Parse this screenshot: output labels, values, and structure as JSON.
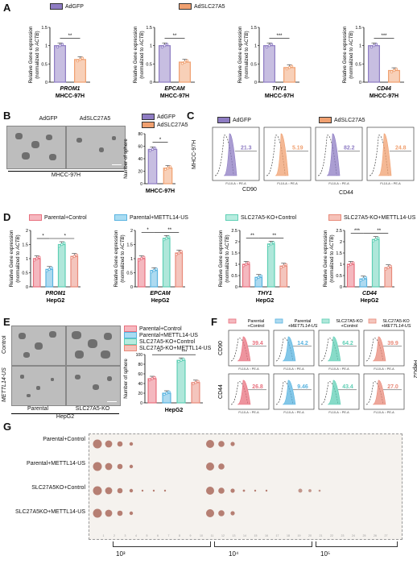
{
  "panels": {
    "A": "A",
    "B": "B",
    "C": "C",
    "D": "D",
    "E": "E",
    "F": "F",
    "G": "G"
  },
  "colors": {
    "AdGFP": "#8e7cc3",
    "AdSLC27A5": "#f0a070",
    "parental_control": "#e8707e",
    "parental_mettl14": "#5ab4e0",
    "ko_control": "#5fcfb5",
    "ko_mettl14": "#e88a7a"
  },
  "panelA": {
    "legend": [
      "AdGFP",
      "AdSLC27A5"
    ],
    "ylabel_line1": "Relative Gene expression",
    "ylabel_line2": "(normalized to ACTB)",
    "cell_line": "MHCC-97H"
  },
  "panelB": {
    "img_labels": [
      "AdGFP",
      "AdSLC27A5"
    ],
    "group_label": "MHCC-97H",
    "legend": [
      "AdGFP",
      "AdSLC27A5"
    ],
    "ylabel": "Number of sphere",
    "xlabel": "MHCC-97H"
  },
  "panelC": {
    "legend": [
      "AdGFP",
      "AdSLC27A5"
    ],
    "row_label": "MHCC-97H",
    "markers": [
      "CD90",
      "CD44"
    ],
    "axis_label": "FL10-A :: PE-A",
    "count_label": "Count",
    "values": [
      "21.3",
      "5.19",
      "82.2",
      "24.8"
    ]
  },
  "panelD": {
    "legend": [
      "Parental+Control",
      "Parental+METTL14-US",
      "SLC27A5-KO+Control",
      "SLC27A5-KO+METTL14-US"
    ],
    "ylabel_line1": "Relative Gene expression",
    "ylabel_line2": "(normalized to ACTB)",
    "cell_line": "HepG2"
  },
  "panelE": {
    "row_labels": [
      "Control",
      "METTL14-US"
    ],
    "col_labels": [
      "Parental",
      "SLC27A5-KO"
    ],
    "group_label": "HepG2",
    "legend": [
      "Parental+Control",
      "Parental+METTL14-US",
      "SLC27A5-KO+Control",
      "SLC27A5-KO+METTL14-US"
    ],
    "ylabel": "Number of sphere",
    "xlabel": "HepG2"
  },
  "panelF": {
    "legend": [
      "Parental +Control",
      "Parental +METTL14-US",
      "SLC27A5-KO +Control",
      "SLC27A5-KO +METTL14-US"
    ],
    "row_labels": [
      "CD90",
      "CD44"
    ],
    "side_label": "HepG2",
    "axis_label": "FL10-A :: PE-A",
    "cd90_values": [
      "39.4",
      "14.2",
      "64.2",
      "39.9"
    ],
    "cd44_values": [
      "26.8",
      "9.46",
      "43.4",
      "27.0"
    ]
  },
  "panelG": {
    "rows": [
      "Parental+Control",
      "Parental+METTL14-US",
      "SLC27A5KO+Control",
      "SLC27A5KO+METTL14-US"
    ],
    "scale": [
      "10³",
      "10⁴",
      "10⁵"
    ]
  },
  "chart_data": [
    {
      "type": "bar",
      "panel": "A",
      "gene": "PROM1",
      "categories": [
        "AdGFP",
        "AdSLC27A5"
      ],
      "values": [
        1.0,
        0.62
      ],
      "ylim": [
        0,
        1.5
      ],
      "significance": "**"
    },
    {
      "type": "bar",
      "panel": "A",
      "gene": "EPCAM",
      "categories": [
        "AdGFP",
        "AdSLC27A5"
      ],
      "values": [
        1.0,
        0.55
      ],
      "ylim": [
        0,
        1.5
      ],
      "significance": "**"
    },
    {
      "type": "bar",
      "panel": "A",
      "gene": "THY1",
      "categories": [
        "AdGFP",
        "AdSLC27A5"
      ],
      "values": [
        1.0,
        0.4
      ],
      "ylim": [
        0,
        1.5
      ],
      "significance": "***"
    },
    {
      "type": "bar",
      "panel": "A",
      "gene": "CD44",
      "categories": [
        "AdGFP",
        "AdSLC27A5"
      ],
      "values": [
        1.0,
        0.32
      ],
      "ylim": [
        0,
        1.5
      ],
      "significance": "***"
    },
    {
      "type": "bar",
      "panel": "B",
      "categories": [
        "AdGFP",
        "AdSLC27A5"
      ],
      "values": [
        55,
        25
      ],
      "ylim": [
        0,
        80
      ],
      "significance": "*"
    },
    {
      "type": "bar",
      "panel": "D",
      "gene": "PROM1",
      "categories": [
        "Parental+Control",
        "Parental+METTL14-US",
        "SLC27A5-KO+Control",
        "SLC27A5-KO+METTL14-US"
      ],
      "values": [
        1.0,
        0.62,
        1.5,
        1.08
      ],
      "ylim": [
        0,
        2.0
      ],
      "significance": [
        "*",
        "*"
      ]
    },
    {
      "type": "bar",
      "panel": "D",
      "gene": "EPCAM",
      "categories": [
        "Parental+Control",
        "Parental+METTL14-US",
        "SLC27A5-KO+Control",
        "SLC27A5-KO+METTL14-US"
      ],
      "values": [
        1.0,
        0.58,
        1.72,
        1.2
      ],
      "ylim": [
        0,
        2.0
      ],
      "significance": [
        "*",
        "**"
      ]
    },
    {
      "type": "bar",
      "panel": "D",
      "gene": "THY1",
      "categories": [
        "Parental+Control",
        "Parental+METTL14-US",
        "SLC27A5-KO+Control",
        "SLC27A5-KO+METTL14-US"
      ],
      "values": [
        1.0,
        0.42,
        1.9,
        0.92
      ],
      "ylim": [
        0,
        2.5
      ],
      "significance": [
        "**",
        "**"
      ]
    },
    {
      "type": "bar",
      "panel": "D",
      "gene": "CD44",
      "categories": [
        "Parental+Control",
        "Parental+METTL14-US",
        "SLC27A5-KO+Control",
        "SLC27A5-KO+METTL14-US"
      ],
      "values": [
        1.0,
        0.35,
        2.1,
        0.85
      ],
      "ylim": [
        0,
        2.5
      ],
      "significance": [
        "***",
        "**"
      ]
    },
    {
      "type": "bar",
      "panel": "E",
      "categories": [
        "Parental+Control",
        "Parental+METTL14-US",
        "SLC27A5-KO+Control",
        "SLC27A5-KO+METTL14-US"
      ],
      "values": [
        50,
        20,
        88,
        42
      ],
      "ylim": [
        0,
        100
      ],
      "significance": [
        "**",
        "***"
      ]
    }
  ]
}
